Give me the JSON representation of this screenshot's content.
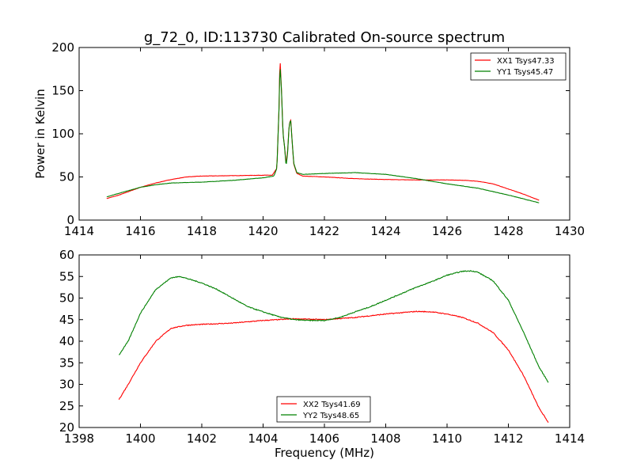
{
  "chart_data": {
    "type": "line",
    "title": "g_72_0, ID:113730 Calibrated On-source spectrum",
    "panels": [
      {
        "xlabel": "",
        "ylabel": "Power in Kelvin",
        "xlim": [
          1414,
          1430
        ],
        "ylim": [
          0,
          200
        ],
        "xticks": [
          1414,
          1416,
          1418,
          1420,
          1422,
          1424,
          1426,
          1428,
          1430
        ],
        "yticks": [
          0,
          50,
          100,
          150,
          200
        ],
        "legend": "top-right",
        "series": [
          {
            "name": "XX1 Tsys47.33",
            "color": "#ff0000",
            "points": [
              [
                1414.9,
                25
              ],
              [
                1415.3,
                29
              ],
              [
                1416.0,
                38
              ],
              [
                1416.5,
                43
              ],
              [
                1417.0,
                47
              ],
              [
                1417.5,
                50
              ],
              [
                1418.0,
                51
              ],
              [
                1419.0,
                51.5
              ],
              [
                1420.0,
                52
              ],
              [
                1420.3,
                52
              ],
              [
                1420.45,
                60
              ],
              [
                1420.52,
                130
              ],
              [
                1420.55,
                190
              ],
              [
                1420.6,
                150
              ],
              [
                1420.65,
                100
              ],
              [
                1420.7,
                85
              ],
              [
                1420.75,
                65
              ],
              [
                1420.8,
                80
              ],
              [
                1420.85,
                110
              ],
              [
                1420.9,
                117
              ],
              [
                1420.95,
                90
              ],
              [
                1421.0,
                65
              ],
              [
                1421.1,
                54
              ],
              [
                1421.3,
                51
              ],
              [
                1422.0,
                50
              ],
              [
                1423.0,
                48
              ],
              [
                1424.0,
                47
              ],
              [
                1425.0,
                46.5
              ],
              [
                1426.0,
                46.5
              ],
              [
                1426.6,
                46
              ],
              [
                1427.0,
                45
              ],
              [
                1427.5,
                42
              ],
              [
                1428.0,
                36
              ],
              [
                1428.5,
                30
              ],
              [
                1429.0,
                23
              ]
            ]
          },
          {
            "name": "YY1 Tsys45.47",
            "color": "#008000",
            "points": [
              [
                1414.9,
                27
              ],
              [
                1415.3,
                31
              ],
              [
                1416.0,
                38
              ],
              [
                1416.5,
                41
              ],
              [
                1417.0,
                43
              ],
              [
                1418.0,
                44
              ],
              [
                1419.0,
                46
              ],
              [
                1420.0,
                49
              ],
              [
                1420.35,
                51
              ],
              [
                1420.45,
                60
              ],
              [
                1420.52,
                130
              ],
              [
                1420.55,
                181
              ],
              [
                1420.6,
                150
              ],
              [
                1420.65,
                100
              ],
              [
                1420.7,
                85
              ],
              [
                1420.75,
                62
              ],
              [
                1420.8,
                78
              ],
              [
                1420.85,
                110
              ],
              [
                1420.9,
                116
              ],
              [
                1420.95,
                90
              ],
              [
                1421.0,
                66
              ],
              [
                1421.1,
                55
              ],
              [
                1421.3,
                53
              ],
              [
                1422.0,
                54
              ],
              [
                1423.0,
                55
              ],
              [
                1424.0,
                53
              ],
              [
                1425.0,
                48
              ],
              [
                1426.0,
                42
              ],
              [
                1427.0,
                37
              ],
              [
                1428.0,
                29
              ],
              [
                1429.0,
                20
              ]
            ]
          }
        ]
      },
      {
        "xlabel": "Frequency (MHz)",
        "ylabel": "",
        "xlim": [
          1398,
          1414
        ],
        "ylim": [
          20,
          60
        ],
        "xticks": [
          1398,
          1400,
          1402,
          1404,
          1406,
          1408,
          1410,
          1412,
          1414
        ],
        "yticks": [
          20,
          25,
          30,
          35,
          40,
          45,
          50,
          55,
          60
        ],
        "legend": "bottom-center",
        "series": [
          {
            "name": "XX2 Tsys41.69",
            "color": "#ff0000",
            "points": [
              [
                1399.3,
                26.5
              ],
              [
                1399.6,
                30
              ],
              [
                1400.0,
                35
              ],
              [
                1400.5,
                40
              ],
              [
                1401.0,
                43
              ],
              [
                1401.5,
                43.7
              ],
              [
                1402.0,
                43.9
              ],
              [
                1403.0,
                44.2
              ],
              [
                1404.0,
                44.8
              ],
              [
                1405.0,
                45.2
              ],
              [
                1406.0,
                45
              ],
              [
                1407.0,
                45.5
              ],
              [
                1408.0,
                46.3
              ],
              [
                1409.0,
                46.9
              ],
              [
                1409.5,
                46.8
              ],
              [
                1410.0,
                46.3
              ],
              [
                1410.5,
                45.5
              ],
              [
                1411.0,
                44.2
              ],
              [
                1411.5,
                42
              ],
              [
                1412.0,
                38
              ],
              [
                1412.5,
                32
              ],
              [
                1413.0,
                24.5
              ],
              [
                1413.3,
                21.2
              ]
            ]
          },
          {
            "name": "YY2 Tsys48.65",
            "color": "#008000",
            "points": [
              [
                1399.3,
                36.8
              ],
              [
                1399.6,
                40
              ],
              [
                1400.0,
                46.5
              ],
              [
                1400.5,
                52
              ],
              [
                1401.0,
                54.7
              ],
              [
                1401.3,
                55
              ],
              [
                1402.0,
                53.5
              ],
              [
                1402.5,
                52
              ],
              [
                1403.0,
                50
              ],
              [
                1403.5,
                48
              ],
              [
                1404.0,
                46.8
              ],
              [
                1404.5,
                45.7
              ],
              [
                1405.0,
                45
              ],
              [
                1405.5,
                44.8
              ],
              [
                1406.0,
                44.8
              ],
              [
                1406.5,
                45.5
              ],
              [
                1407.0,
                46.8
              ],
              [
                1407.5,
                48
              ],
              [
                1408.0,
                49.5
              ],
              [
                1408.5,
                51
              ],
              [
                1409.0,
                52.5
              ],
              [
                1409.5,
                53.8
              ],
              [
                1410.0,
                55.3
              ],
              [
                1410.5,
                56.2
              ],
              [
                1410.8,
                56.3
              ],
              [
                1411.0,
                56
              ],
              [
                1411.5,
                54
              ],
              [
                1412.0,
                49.5
              ],
              [
                1412.5,
                42
              ],
              [
                1413.0,
                34
              ],
              [
                1413.3,
                30.5
              ]
            ]
          }
        ]
      }
    ]
  }
}
